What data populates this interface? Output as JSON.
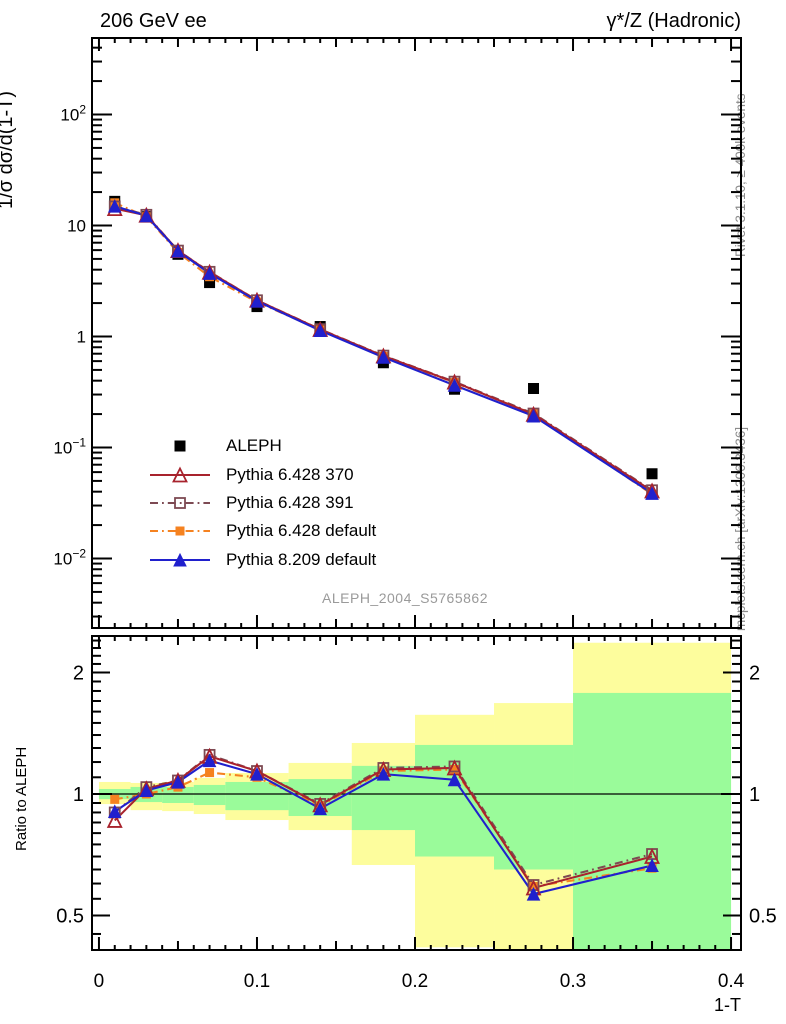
{
  "header": {
    "left_title": "206 GeV ee",
    "right_title": "γ*/Z (Hadronic)"
  },
  "side_text": {
    "top": "Rivet 3.1.10, ≥ 400k events",
    "bottom": "mcplots.cern.ch [arXiv:1306.3436]"
  },
  "watermark": "ALEPH_2004_S5765862",
  "axes_labels": {
    "y_main": "1/σ  dσ/d(1-T)",
    "y_ratio": "Ratio to ALEPH",
    "x": "1-T"
  },
  "legend": {
    "position": "middle-left",
    "items": [
      {
        "label": "ALEPH"
      },
      {
        "label": "Pythia 6.428 370"
      },
      {
        "label": "Pythia 6.428 391"
      },
      {
        "label": "Pythia 6.428 default"
      },
      {
        "label": "Pythia 8.209 default"
      }
    ]
  },
  "chart_data": {
    "type": "line",
    "title": "Thrust (1-T) distribution, 206 GeV ee, γ*/Z (Hadronic)",
    "xlabel": "1-T",
    "ylabel": "1/σ dσ/d(1-T)",
    "grid": false,
    "bin_edges": [
      0,
      0.02,
      0.04,
      0.06,
      0.08,
      0.12,
      0.16,
      0.2,
      0.25,
      0.3,
      0.4
    ],
    "bin_centers": [
      0.01,
      0.03,
      0.05,
      0.07,
      0.1,
      0.14,
      0.18,
      0.225,
      0.275,
      0.35
    ],
    "aleph": {
      "name": "ALEPH",
      "color": "#000000",
      "marker": "square-filled",
      "marker_size": 11,
      "values": [
        16.5,
        12.0,
        5.5,
        3.06,
        1.86,
        1.23,
        0.58,
        0.335,
        0.34,
        0.058
      ]
    },
    "series": [
      {
        "name": "Pythia 6.428 default",
        "color": "#f58220",
        "line": "dashdot",
        "marker": "square-filled",
        "marker_size": 9,
        "ratio_to_data": [
          0.97,
          1.0,
          1.04,
          1.13,
          1.1,
          0.935,
          1.14,
          1.15,
          0.59,
          0.655
        ]
      },
      {
        "name": "Pythia 6.428 391",
        "color": "#7d4a53",
        "line": "dashdot",
        "marker": "square-open",
        "marker_size": 10,
        "ratio_to_data": [
          0.9,
          1.04,
          1.08,
          1.25,
          1.14,
          0.945,
          1.16,
          1.17,
          0.595,
          0.71
        ]
      },
      {
        "name": "Pythia 6.428 370",
        "color": "#a8232d",
        "line": "solid",
        "marker": "triangle-open",
        "marker_size": 13,
        "ratio_to_data": [
          0.86,
          1.03,
          1.08,
          1.24,
          1.14,
          0.94,
          1.15,
          1.16,
          0.585,
          0.7
        ]
      },
      {
        "name": "Pythia 8.209 default",
        "color": "#2020cd",
        "line": "solid",
        "marker": "triangle-filled",
        "marker_size": 12,
        "ratio_to_data": [
          0.905,
          1.02,
          1.07,
          1.21,
          1.12,
          0.92,
          1.12,
          1.085,
          0.565,
          0.665
        ]
      }
    ],
    "legend_series_order": [
      "ALEPH",
      "Pythia 6.428 370",
      "Pythia 6.428 391",
      "Pythia 6.428 default",
      "Pythia 8.209 default"
    ],
    "x_axis": {
      "min": -0.0044,
      "max": 0.4063,
      "tick_values": [
        0,
        0.1,
        0.2,
        0.3,
        0.4
      ],
      "tick_labels": [
        "0",
        "0.1",
        "0.2",
        "0.3",
        "0.4"
      ],
      "minor_step": 0.01,
      "medium_step": 0.05
    },
    "y_axis": {
      "scale": "log",
      "min": 0.00236,
      "max": 489,
      "ticks": [
        {
          "value": 100,
          "base": "10",
          "exp": "2"
        },
        {
          "value": 10,
          "base": "10",
          "exp": ""
        },
        {
          "value": 1,
          "base": "1",
          "exp": ""
        },
        {
          "value": 0.1,
          "base": "10",
          "exp": "−1"
        },
        {
          "value": 0.01,
          "base": "10",
          "exp": "−2"
        }
      ]
    },
    "ratio_axis": {
      "scale": "log",
      "min": 0.4107,
      "max": 2.463,
      "unity_line": 1,
      "ticks": [
        {
          "value": 2,
          "label": "2"
        },
        {
          "value": 1,
          "label": "1"
        },
        {
          "value": 0.5,
          "label": "0.5"
        }
      ]
    },
    "bands": {
      "yellow": {
        "color": "#fdfd9d",
        "ranges": [
          [
            0.944,
            1.071
          ],
          [
            0.912,
            1.065
          ],
          [
            0.907,
            1.071
          ],
          [
            0.892,
            1.096
          ],
          [
            0.862,
            1.127
          ],
          [
            0.814,
            1.194
          ],
          [
            0.667,
            1.338
          ],
          [
            0.417,
            1.571
          ],
          [
            0.4,
            1.68
          ],
          [
            0.4,
            2.37
          ]
        ]
      },
      "green": {
        "color": "#9afb9a",
        "ranges": [
          [
            0.971,
            1.029
          ],
          [
            0.955,
            1.041
          ],
          [
            0.95,
            1.041
          ],
          [
            0.939,
            1.053
          ],
          [
            0.912,
            1.071
          ],
          [
            0.882,
            1.089
          ],
          [
            0.814,
            1.174
          ],
          [
            0.7,
            1.323
          ],
          [
            0.65,
            1.323
          ],
          [
            0.4,
            1.78
          ]
        ]
      }
    }
  }
}
